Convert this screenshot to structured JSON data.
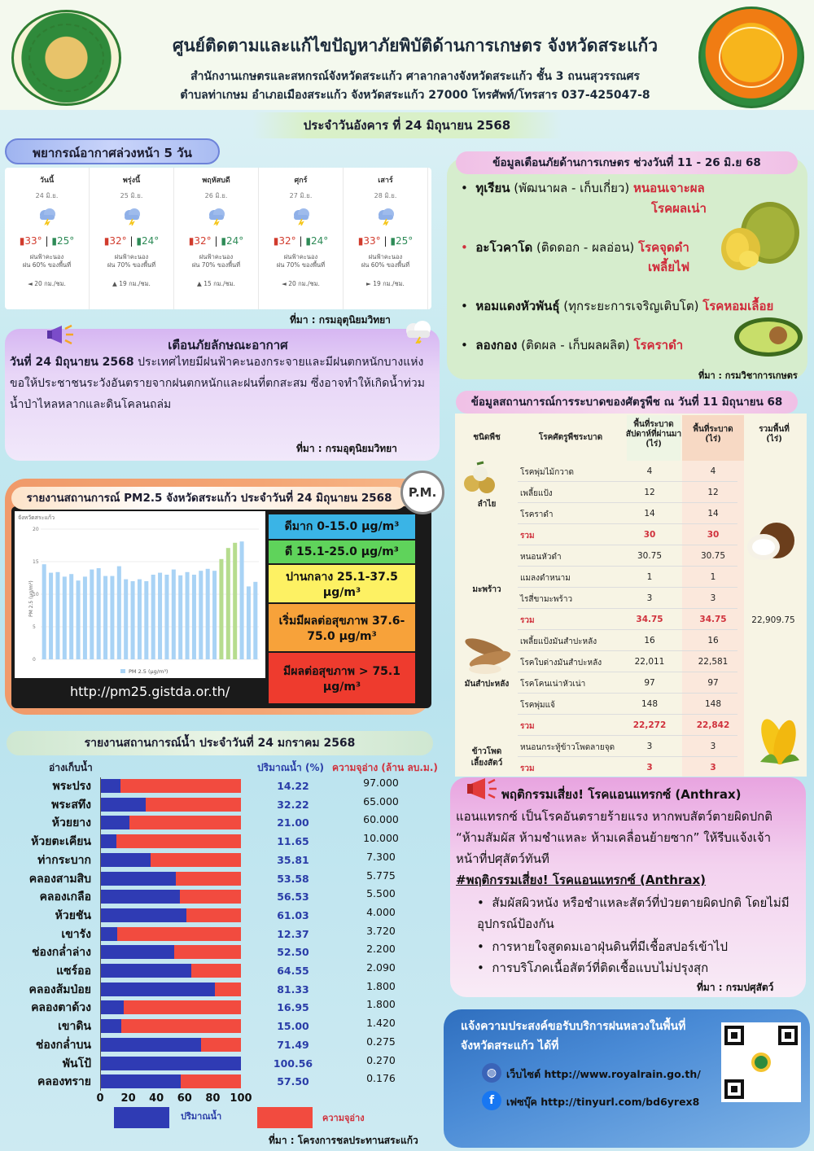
{
  "header": {
    "title": "ศูนย์ติดตามและแก้ไขปัญหาภัยพิบัติด้านการเกษตร จังหวัดสระแก้ว",
    "line1": "สำนักงานเกษตรและสหกรณ์จังหวัดสระแก้ว ศาลากลางจังหวัดสระแก้ว ชั้น 3 ถนนสุวรรณศร",
    "line2": "ตำบลท่าเกษม อำเภอเมืองสระแก้ว จังหวัดสระแก้ว 27000 โทรศัพท์/โทรสาร 037-425047-8",
    "date": "ประจำวันอังคาร ที่ 24 มิถุนายน 2568"
  },
  "forecast": {
    "title": "พยากรณ์อากาศล่วงหน้า 5 วัน",
    "source": "ที่มา : กรมอุตุนิยมวิทยา",
    "days": [
      {
        "name": "วันนี้",
        "date": "24 มิ.ย.",
        "hi": "33°",
        "lo": "25°",
        "rain1": "ฝนฟ้าคะนอง",
        "rain2": "ฝน 60% ของพื้นที่",
        "wind": "◄ 20 กม./ชม."
      },
      {
        "name": "พรุ่งนี้",
        "date": "25 มิ.ย.",
        "hi": "32°",
        "lo": "24°",
        "rain1": "ฝนฟ้าคะนอง",
        "rain2": "ฝน 70% ของพื้นที่",
        "wind": "▲ 19 กม./ชม."
      },
      {
        "name": "พฤหัสบดี",
        "date": "26 มิ.ย.",
        "hi": "32°",
        "lo": "24°",
        "rain1": "ฝนฟ้าคะนอง",
        "rain2": "ฝน 70% ของพื้นที่",
        "wind": "▲ 15 กม./ชม."
      },
      {
        "name": "ศุกร์",
        "date": "27 มิ.ย.",
        "hi": "32°",
        "lo": "24°",
        "rain1": "ฝนฟ้าคะนอง",
        "rain2": "ฝน 70% ของพื้นที่",
        "wind": "◄ 20 กม./ชม."
      },
      {
        "name": "เสาร์",
        "date": "28 มิ.ย.",
        "hi": "33°",
        "lo": "25°",
        "rain1": "ฝนฟ้าคะนอง",
        "rain2": "ฝน 60% ของพื้นที่",
        "wind": "► 19 กม./ชม."
      }
    ]
  },
  "alert": {
    "title": "เตือนภัยลักษณะอากาศ",
    "lead": "วันที่ 24 มิถุนายน 2568",
    "body": " ประเทศไทยมีฝนฟ้าคะนองกระจายและมีฝนตกหนักบางแห่ง ขอให้ประชาชนระวังอันตรายจากฝนตกหนักและฝนที่ตกสะสม ซึ่งอาจทำให้เกิดน้ำท่วม น้ำป่าไหลหลากและดินโคลนถล่ม",
    "source": "ที่มา : กรมอุตุนิยมวิทยา"
  },
  "pm": {
    "title": "รายงานสถานการณ์ PM2.5 จังหวัดสระแก้ว ประจำวันที่ 24 มิถุนายน 2568",
    "badge": "P.M.",
    "chart_label": "จังหวัดสระแก้ว",
    "y_label": "PM 2.5 (µg/m³)",
    "legend": "PM 2.5 (µg/m³)",
    "url": "http://pm25.gistda.or.th/",
    "scale": [
      {
        "label": "ดีมาก 0-15.0 µg/m³",
        "color": "#3ab4e6"
      },
      {
        "label": "ดี 15.1-25.0 µg/m³",
        "color": "#5fd35b"
      },
      {
        "label": "ปานกลาง 25.1-37.5 µg/m³",
        "color": "#fdf163"
      },
      {
        "label": "เริ่มมีผลต่อสุขภาพ 37.6-75.0 µg/m³",
        "color": "#f7a23a"
      },
      {
        "label": "มีผลต่อสุขภาพ > 75.1 µg/m³",
        "color": "#ee3b2e"
      }
    ]
  },
  "chart_data": {
    "type": "bar",
    "ylim": [
      0,
      20
    ],
    "yticks": [
      "0",
      "5",
      "10",
      "15",
      "20"
    ],
    "values": [
      14.6,
      13.3,
      13.4,
      12.7,
      13.1,
      12.1,
      12.7,
      13.8,
      14.0,
      12.8,
      12.8,
      14.3,
      12.3,
      12.0,
      12.3,
      12.0,
      13.0,
      13.3,
      13.0,
      13.8,
      12.9,
      13.4,
      13.0,
      13.6,
      13.9,
      13.6,
      15.4,
      17.1,
      17.9,
      18.1,
      11.2,
      11.9
    ],
    "highlight_from": 25
  },
  "water": {
    "title": "รายงานสถานการณ์น้ำ ประจำวันที่ 24 มกราคม 2568",
    "col_name": "อ่างเก็บน้ำ",
    "col_pct": "ปริมาณน้ำ (%)",
    "col_cap": "ความจุอ่าง (ล้าน ลบ.ม.)",
    "legend_fill": "ปริมาณน้ำ",
    "legend_cap": "ความจุอ่าง",
    "source": "ที่มา : โครงการชลประทานสระแก้ว",
    "ticks": [
      "0",
      "20",
      "40",
      "60",
      "80",
      "100"
    ],
    "rows": [
      {
        "name": "พระปรง",
        "pct": "14.22",
        "cap": "97.000",
        "v": 14.22
      },
      {
        "name": "พระสทึง",
        "pct": "32.22",
        "cap": "65.000",
        "v": 32.22
      },
      {
        "name": "ห้วยยาง",
        "pct": "21.00",
        "cap": "60.000",
        "v": 21.0
      },
      {
        "name": "ห้วยตะเคียน",
        "pct": "11.65",
        "cap": "10.000",
        "v": 11.65
      },
      {
        "name": "ท่ากระบาก",
        "pct": "35.81",
        "cap": "7.300",
        "v": 35.81
      },
      {
        "name": "คลองสามสิบ",
        "pct": "53.58",
        "cap": "5.775",
        "v": 53.58
      },
      {
        "name": "คลองเกลือ",
        "pct": "56.53",
        "cap": "5.500",
        "v": 56.53
      },
      {
        "name": "ห้วยชัน",
        "pct": "61.03",
        "cap": "4.000",
        "v": 61.03
      },
      {
        "name": "เขารัง",
        "pct": "12.37",
        "cap": "3.720",
        "v": 12.37
      },
      {
        "name": "ช่องกล่ำล่าง",
        "pct": "52.50",
        "cap": "2.200",
        "v": 52.5
      },
      {
        "name": "แซร์ออ",
        "pct": "64.55",
        "cap": "2.090",
        "v": 64.55
      },
      {
        "name": "คลองส้มป่อย",
        "pct": "81.33",
        "cap": "1.800",
        "v": 81.33
      },
      {
        "name": "คลองตาด้วง",
        "pct": "16.95",
        "cap": "1.800",
        "v": 16.95
      },
      {
        "name": "เขาดิน",
        "pct": "15.00",
        "cap": "1.420",
        "v": 15.0
      },
      {
        "name": "ช่องกล่ำบน",
        "pct": "71.49",
        "cap": "0.275",
        "v": 71.49
      },
      {
        "name": "พันโป้",
        "pct": "100.56",
        "cap": "0.270",
        "v": 100.56
      },
      {
        "name": "คลองทราย",
        "pct": "57.50",
        "cap": "0.176",
        "v": 57.5
      }
    ]
  },
  "warn": {
    "title": "ข้อมูลเตือนภัยด้านการเกษตร ช่วงวันที่ 11 - 26 มิ.ย 68",
    "source": "ที่มา : กรมวิชาการเกษตร",
    "items": [
      {
        "crop": "ทุเรียน",
        "stage": " (พัฒนาผล - เก็บเกี่ยว) ",
        "d1": "หนอนเจาะผล",
        "d2": "โรคผลเน่า"
      },
      {
        "crop": "อะโวคาโด",
        "stage": " (ติดดอก - ผลอ่อน) ",
        "d1": "โรคจุดดำ",
        "d2": "เพลี้ยไฟ"
      },
      {
        "crop": "หอมแดงหัวพันธุ์",
        "stage": " (ทุกระยะการเจริญเติบโต) ",
        "d1": "โรคหอมเลื้อย",
        "d2": ""
      },
      {
        "crop": "ลองกอง",
        "stage": " (ติดผล - เก็บผลผลิต) ",
        "d1": "โรคราดำ",
        "d2": ""
      }
    ]
  },
  "pest": {
    "title": "ข้อมูลสถานการณ์การระบาดของศัตรูพืช ณ วันที่ 11 มิถุนายน 68",
    "h_crop": "ชนิดพืช",
    "h_pest": "โรคศัตรูพืชระบาด",
    "h_a1": "พื้นที่ระบาด",
    "h_a2": "สัปดาห์ที่ผ่านมา",
    "h_a3": "(ไร่)",
    "h_b1": "พื้นที่ระบาด",
    "h_b2": "(ไร่)",
    "h_c1": "รวมพื้นที่",
    "h_c2": "(ไร่)",
    "total": "22,909.75",
    "crops": [
      {
        "name": "ลำไย"
      },
      {
        "name": "มะพร้าว"
      },
      {
        "name": "มันสำปะหลัง"
      },
      {
        "name": "ข้าวโพด"
      },
      {
        "name": "เลี้ยงสัตว์"
      }
    ],
    "rows": [
      {
        "pest": "โรคพุ่มไม้กวาด",
        "a": "4",
        "b": "4",
        "sum": false
      },
      {
        "pest": "เพลี้ยแป้ง",
        "a": "12",
        "b": "12",
        "sum": false
      },
      {
        "pest": "โรคราดำ",
        "a": "14",
        "b": "14",
        "sum": false
      },
      {
        "pest": "รวม",
        "a": "30",
        "b": "30",
        "sum": true
      },
      {
        "pest": "หนอนหัวดำ",
        "a": "30.75",
        "b": "30.75",
        "sum": false
      },
      {
        "pest": "แมลงดำหนาม",
        "a": "1",
        "b": "1",
        "sum": false
      },
      {
        "pest": "ไรสี่ขามะพร้าว",
        "a": "3",
        "b": "3",
        "sum": false
      },
      {
        "pest": "รวม",
        "a": "34.75",
        "b": "34.75",
        "sum": true
      },
      {
        "pest": "เพลี้ยแป้งมันสำปะหลัง",
        "a": "16",
        "b": "16",
        "sum": false
      },
      {
        "pest": "โรคใบด่างมันสำปะหลัง",
        "a": "22,011",
        "b": "22,581",
        "sum": false
      },
      {
        "pest": "โรคโคนเน่าหัวเน่า",
        "a": "97",
        "b": "97",
        "sum": false
      },
      {
        "pest": "โรคพุ่มแจ้",
        "a": "148",
        "b": "148",
        "sum": false
      },
      {
        "pest": "รวม",
        "a": "22,272",
        "b": "22,842",
        "sum": true
      },
      {
        "pest": "หนอนกระทู้ข้าวโพดลายจุด",
        "a": "3",
        "b": "3",
        "sum": false
      },
      {
        "pest": "รวม",
        "a": "3",
        "b": "3",
        "sum": true
      }
    ]
  },
  "anthrax": {
    "title": "พฤติกรรมเสี่ยง! โรคแอนแทรกซ์ (Anthrax)",
    "p1": "แอนแทรกซ์ เป็นโรคอันตรายร้ายแรง หากพบสัตว์ตายผิดปกติ “ห้ามสัมผัส ห้ามชำแหละ ห้ามเคลื่อนย้ายซาก” ให้รีบแจ้งเจ้าหน้าที่ปศุสัตว์ทันที",
    "sub": "#พฤติกรรมเสี่ยง! โรคแอนแทรกซ์ (Anthrax)",
    "b1": "สัมผัสผิวหนัง หรือชำแหละสัตว์ที่ป่วยตายผิดปกติ โดยไม่มีอุปกรณ์ป้องกัน",
    "b2": "การหายใจสูดดมเอาฝุ่นดินที่มีเชื้อสปอร์เข้าไป",
    "b3": "การบริโภคเนื้อสัตว์ที่ติดเชื้อแบบไม่ปรุงสุก",
    "source": "ที่มา : กรมปศุสัตว์"
  },
  "rain": {
    "text1": "แจ้งความประสงค์ขอรับบริการฝนหลวงในพื้นที่",
    "text2": "จังหวัดสระแก้ว ได้ที่",
    "web": "เว็บไซต์ http://www.royalrain.go.th/",
    "fb": "เฟซบุ๊ค http://tinyurl.com/bd6yrex8"
  }
}
